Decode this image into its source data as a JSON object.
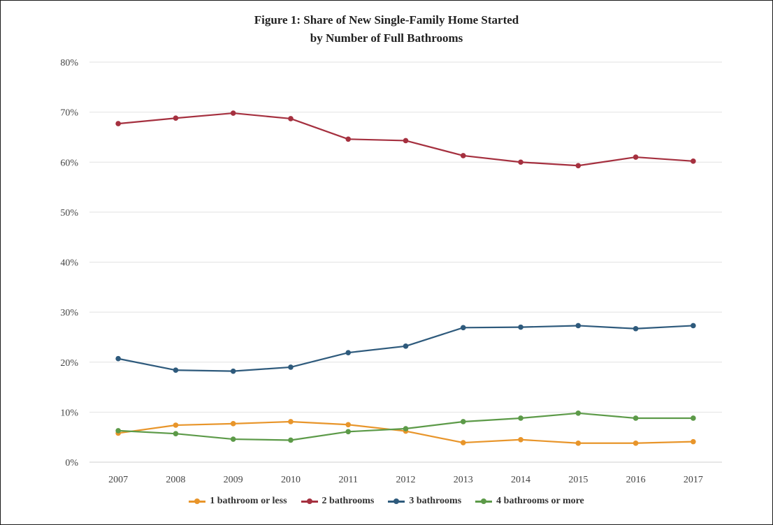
{
  "chart_data": {
    "type": "line",
    "title_line1": "Figure 1: Share of New Single-Family Home Started",
    "title_line2": "by Number of Full Bathrooms",
    "x": [
      "2007",
      "2008",
      "2009",
      "2010",
      "2011",
      "2012",
      "2013",
      "2014",
      "2015",
      "2016",
      "2017"
    ],
    "yticks": [
      "0%",
      "10%",
      "20%",
      "30%",
      "40%",
      "50%",
      "60%",
      "70%",
      "80%"
    ],
    "ylim": [
      0,
      80
    ],
    "grid": true,
    "legend_position": "bottom",
    "series": [
      {
        "name": "1 bathroom or less",
        "color": "#e8952a",
        "values": [
          5.8,
          7.4,
          7.7,
          8.1,
          7.5,
          6.2,
          3.9,
          4.5,
          3.8,
          3.8,
          4.1
        ]
      },
      {
        "name": "2 bathrooms",
        "color": "#a5303f",
        "values": [
          67.7,
          68.8,
          69.8,
          68.7,
          64.6,
          64.3,
          61.3,
          60.0,
          59.3,
          61.0,
          60.2
        ]
      },
      {
        "name": "3 bathrooms",
        "color": "#2e5a7c",
        "values": [
          20.7,
          18.4,
          18.2,
          19.0,
          21.9,
          23.2,
          26.9,
          27.0,
          27.3,
          26.7,
          27.3
        ]
      },
      {
        "name": "4 bathrooms or more",
        "color": "#5c9a48",
        "values": [
          6.3,
          5.7,
          4.6,
          4.4,
          6.1,
          6.7,
          8.1,
          8.8,
          9.8,
          8.8,
          8.8
        ]
      }
    ]
  }
}
